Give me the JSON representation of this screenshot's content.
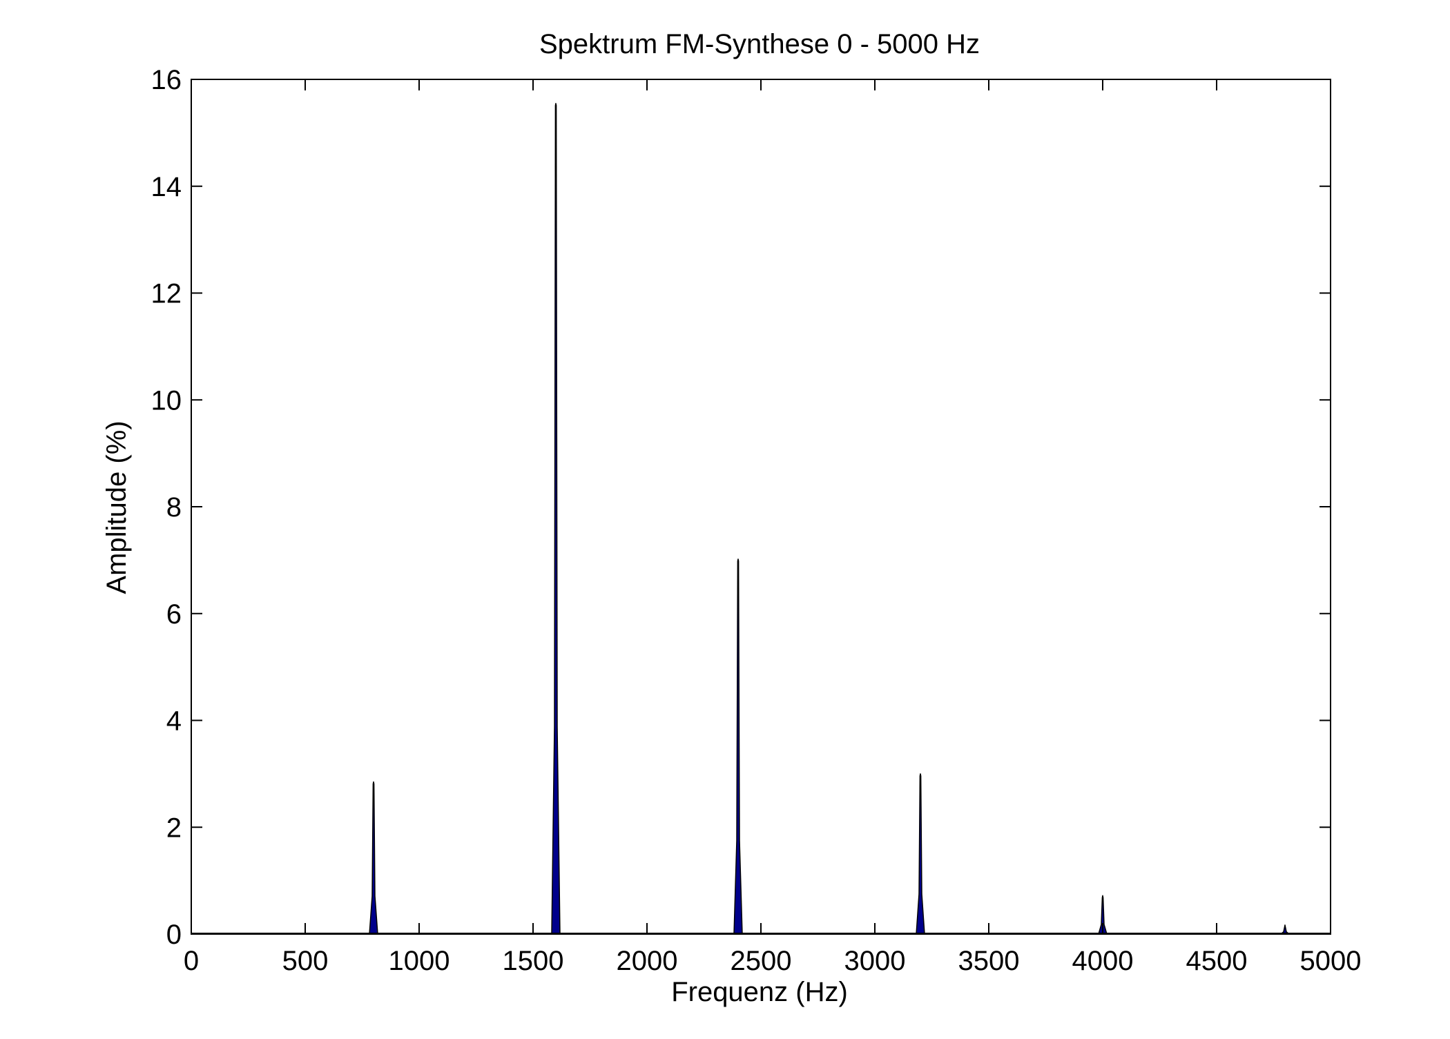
{
  "chart_data": {
    "type": "area",
    "title": "Spektrum FM-Synthese 0 - 5000 Hz",
    "xlabel": "Frequenz (Hz)",
    "ylabel": "Amplitude (%)",
    "xlim": [
      0,
      5000
    ],
    "ylim": [
      0,
      16
    ],
    "x_ticks": [
      "0",
      "500",
      "1000",
      "1500",
      "2000",
      "2500",
      "3000",
      "3500",
      "4000",
      "4500",
      "5000"
    ],
    "y_ticks": [
      "0",
      "2",
      "4",
      "6",
      "8",
      "10",
      "12",
      "14",
      "16"
    ],
    "grid": false,
    "fill_color": "#00008b",
    "line_color": "#000000",
    "series": [
      {
        "peaks": [
          {
            "x": 800,
            "y": 2.85
          },
          {
            "x": 1600,
            "y": 15.55
          },
          {
            "x": 2400,
            "y": 7.02
          },
          {
            "x": 3200,
            "y": 3.0
          },
          {
            "x": 4000,
            "y": 0.72
          },
          {
            "x": 4800,
            "y": 0.17
          }
        ]
      }
    ]
  }
}
